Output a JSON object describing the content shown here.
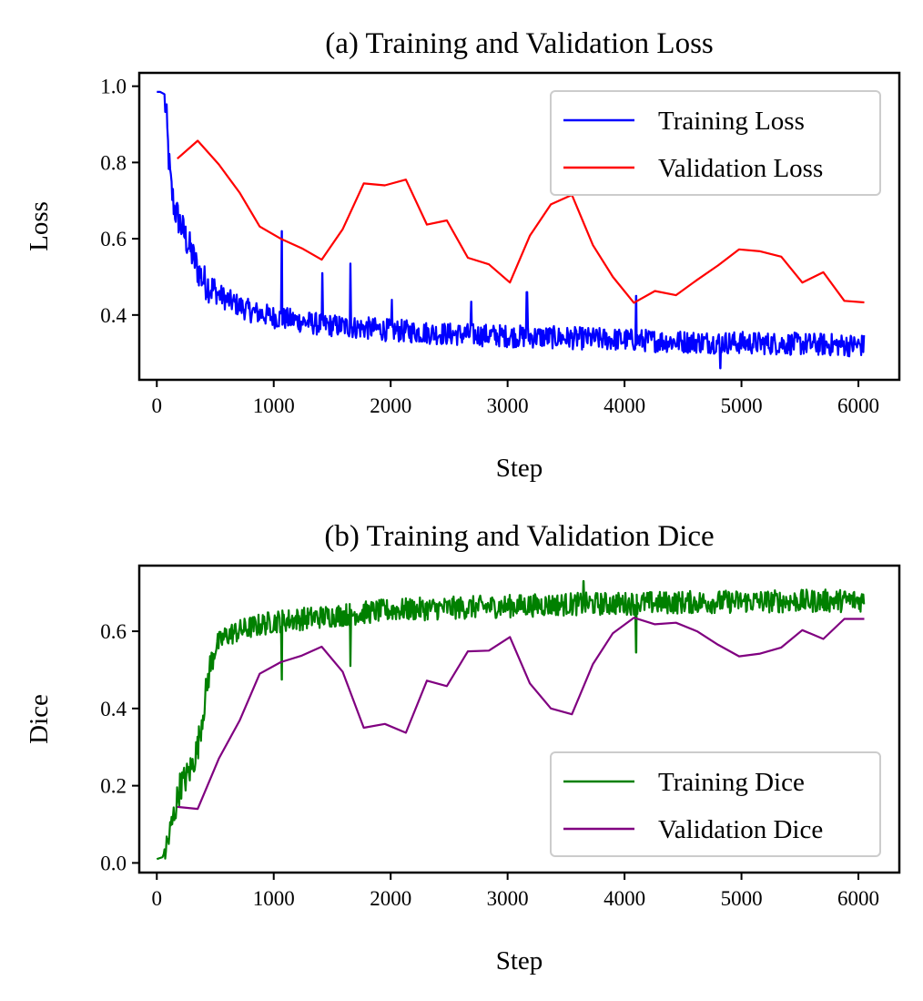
{
  "chart_data": [
    {
      "type": "line",
      "title": "(a) Training and Validation Loss",
      "xlabel": "Step",
      "ylabel": "Loss",
      "xlim": [
        -150,
        6350
      ],
      "ylim": [
        0.23,
        1.035
      ],
      "xticks": [
        0,
        1000,
        2000,
        3000,
        4000,
        5000,
        6000
      ],
      "yticks": [
        0.4,
        0.6,
        0.8,
        1.0
      ],
      "ytick_labels": [
        "0.4",
        "0.6",
        "0.8",
        "1.0"
      ],
      "legend_position": "upper right",
      "grid": false,
      "series": [
        {
          "name": "Training Loss",
          "color": "#0000ff",
          "noisy": true,
          "x": [
            0,
            30,
            60,
            80,
            100,
            120,
            150,
            200,
            250,
            300,
            350,
            400,
            500,
            600,
            700,
            800,
            1000,
            1200,
            1400,
            1600,
            1800,
            2000,
            2500,
            3000,
            3500,
            4000,
            4500,
            5000,
            5500,
            6050
          ],
          "y": [
            0.985,
            0.985,
            0.98,
            0.93,
            0.82,
            0.74,
            0.68,
            0.64,
            0.6,
            0.56,
            0.52,
            0.49,
            0.46,
            0.44,
            0.425,
            0.41,
            0.395,
            0.385,
            0.375,
            0.37,
            0.365,
            0.36,
            0.35,
            0.345,
            0.34,
            0.335,
            0.33,
            0.327,
            0.324,
            0.32
          ],
          "spikes": [
            {
              "x": 1070,
              "y": 0.62
            },
            {
              "x": 1415,
              "y": 0.51
            },
            {
              "x": 1655,
              "y": 0.535
            },
            {
              "x": 2010,
              "y": 0.44
            },
            {
              "x": 2690,
              "y": 0.435
            },
            {
              "x": 3165,
              "y": 0.46
            },
            {
              "x": 4100,
              "y": 0.45
            },
            {
              "x": 4820,
              "y": 0.26
            }
          ]
        },
        {
          "name": "Validation Loss",
          "color": "#ff0000",
          "x": [
            175,
            350,
            530,
            710,
            880,
            1060,
            1240,
            1410,
            1590,
            1770,
            1950,
            2130,
            2310,
            2480,
            2660,
            2840,
            3020,
            3190,
            3370,
            3550,
            3730,
            3900,
            4080,
            4260,
            4440,
            4620,
            4800,
            4980,
            5160,
            5340,
            5520,
            5700,
            5880,
            6050
          ],
          "y": [
            0.81,
            0.857,
            0.795,
            0.72,
            0.632,
            0.6,
            0.575,
            0.545,
            0.625,
            0.745,
            0.74,
            0.755,
            0.637,
            0.648,
            0.55,
            0.533,
            0.485,
            0.608,
            0.69,
            0.715,
            0.583,
            0.5,
            0.432,
            0.463,
            0.452,
            0.492,
            0.53,
            0.572,
            0.567,
            0.553,
            0.485,
            0.512,
            0.437,
            0.433
          ]
        }
      ]
    },
    {
      "type": "line",
      "title": "(b) Training and Validation Dice",
      "xlabel": "Step",
      "ylabel": "Dice",
      "xlim": [
        -150,
        6350
      ],
      "ylim": [
        -0.025,
        0.77
      ],
      "xticks": [
        0,
        1000,
        2000,
        3000,
        4000,
        5000,
        6000
      ],
      "yticks": [
        0.0,
        0.2,
        0.4,
        0.6
      ],
      "ytick_labels": [
        "0.0",
        "0.2",
        "0.4",
        "0.6"
      ],
      "legend_position": "lower right",
      "grid": false,
      "series": [
        {
          "name": "Training Dice",
          "color": "#008000",
          "noisy": true,
          "x": [
            0,
            50,
            100,
            150,
            200,
            250,
            300,
            350,
            400,
            450,
            500,
            600,
            800,
            1000,
            1500,
            2000,
            2500,
            3000,
            3500,
            4000,
            4500,
            5000,
            5500,
            6050
          ],
          "y": [
            0.01,
            0.015,
            0.06,
            0.13,
            0.2,
            0.22,
            0.25,
            0.3,
            0.4,
            0.5,
            0.56,
            0.59,
            0.61,
            0.625,
            0.64,
            0.655,
            0.66,
            0.665,
            0.67,
            0.672,
            0.675,
            0.677,
            0.678,
            0.68
          ],
          "spikes": [
            {
              "x": 1070,
              "y": 0.475
            },
            {
              "x": 1655,
              "y": 0.51
            },
            {
              "x": 3650,
              "y": 0.73
            },
            {
              "x": 4100,
              "y": 0.545
            }
          ]
        },
        {
          "name": "Validation Dice",
          "color": "#800080",
          "x": [
            175,
            350,
            530,
            710,
            880,
            1060,
            1240,
            1410,
            1590,
            1770,
            1950,
            2130,
            2310,
            2480,
            2660,
            2840,
            3020,
            3190,
            3370,
            3550,
            3730,
            3900,
            4080,
            4260,
            4440,
            4620,
            4800,
            4980,
            5160,
            5340,
            5520,
            5700,
            5880,
            6050
          ],
          "y": [
            0.145,
            0.14,
            0.27,
            0.37,
            0.49,
            0.52,
            0.537,
            0.56,
            0.495,
            0.35,
            0.36,
            0.337,
            0.472,
            0.458,
            0.548,
            0.55,
            0.585,
            0.465,
            0.4,
            0.385,
            0.515,
            0.595,
            0.635,
            0.618,
            0.622,
            0.6,
            0.565,
            0.535,
            0.542,
            0.558,
            0.603,
            0.58,
            0.632,
            0.632
          ]
        }
      ]
    }
  ]
}
